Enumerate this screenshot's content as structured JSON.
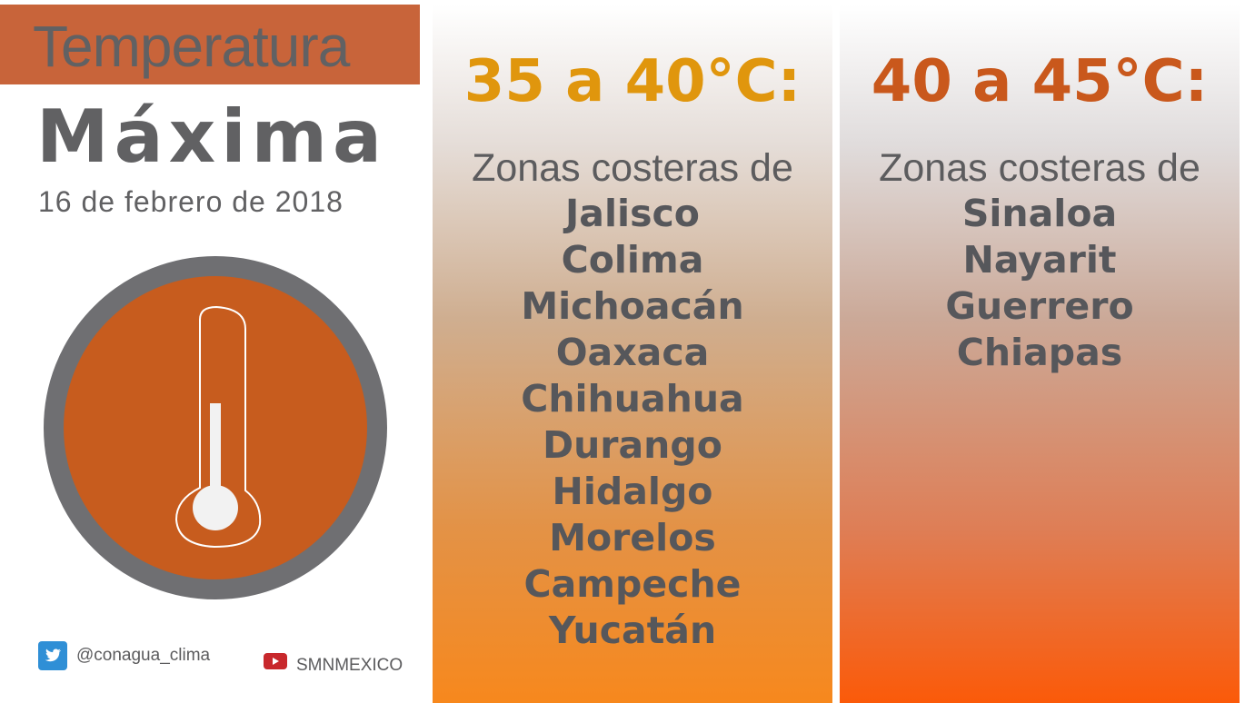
{
  "header": {
    "title_line1": "Temperatura",
    "title_line2": "Máxima",
    "date": "16 de febrero de 2018"
  },
  "colors": {
    "band": "#c8643a",
    "circle": "#c75c1e",
    "ring": "#6f6f72",
    "range1": "#e0960d",
    "range2": "#c9581c"
  },
  "social": {
    "twitter_icon": "twitter-icon",
    "twitter": "@conagua_clima",
    "youtube_icon": "youtube-icon",
    "youtube": "SMNMEXICO"
  },
  "panels": [
    {
      "range": "35 a 40°C:",
      "zone": "Zonas costeras de",
      "states": [
        "Jalisco",
        "Colima",
        "Michoacán",
        "Oaxaca",
        "Chihuahua",
        "Durango",
        "Hidalgo",
        "Morelos",
        "Campeche",
        "Yucatán"
      ]
    },
    {
      "range": "40 a 45°C:",
      "zone": "Zonas costeras de",
      "states": [
        "Sinaloa",
        "Nayarit",
        "Guerrero",
        "Chiapas"
      ]
    }
  ]
}
